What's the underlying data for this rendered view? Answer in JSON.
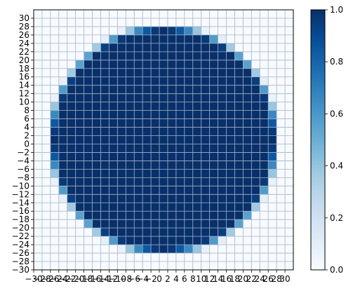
{
  "chart_data": {
    "type": "heatmap",
    "title": "",
    "xlabel": "",
    "ylabel": "",
    "xlim": [
      -30,
      32
    ],
    "ylim": [
      -30,
      32
    ],
    "cell_size": 2,
    "x_ticks": [
      "−30",
      "−28",
      "−26",
      "−24",
      "−22",
      "−20",
      "−18",
      "−16",
      "−14",
      "−12",
      "−10",
      "−8",
      "−6",
      "−4",
      "−2",
      "0",
      "2",
      "4",
      "6",
      "8",
      "10",
      "12",
      "14",
      "16",
      "18",
      "20",
      "22",
      "24",
      "26",
      "28",
      "30"
    ],
    "y_ticks": [
      "−30",
      "−28",
      "−26",
      "−24",
      "−22",
      "−20",
      "−18",
      "−16",
      "−14",
      "−12",
      "−10",
      "−8",
      "−6",
      "−4",
      "−2",
      "0",
      "2",
      "4",
      "6",
      "8",
      "10",
      "12",
      "14",
      "16",
      "18",
      "20",
      "22",
      "24",
      "26",
      "28",
      "30"
    ],
    "colorbar": {
      "min": 0,
      "max": 1,
      "ticks": [
        "0.0",
        "0.2",
        "0.4",
        "0.6",
        "0.8",
        "1.0"
      ],
      "colormap": "Blues",
      "colors": [
        "#f7fbff",
        "#deebf7",
        "#c6dbef",
        "#9ecae1",
        "#6baed6",
        "#4292c6",
        "#2171b5",
        "#08519c",
        "#08306b"
      ]
    },
    "grid": true,
    "grid_color": "#a9b3c4",
    "description": "Occupancy of 2x2 cells by a disc of radius 27 centered at (1,1); cell value = fraction of the cell covered by the disc",
    "disc": {
      "cx": 1,
      "cy": 1,
      "r": 27
    }
  }
}
